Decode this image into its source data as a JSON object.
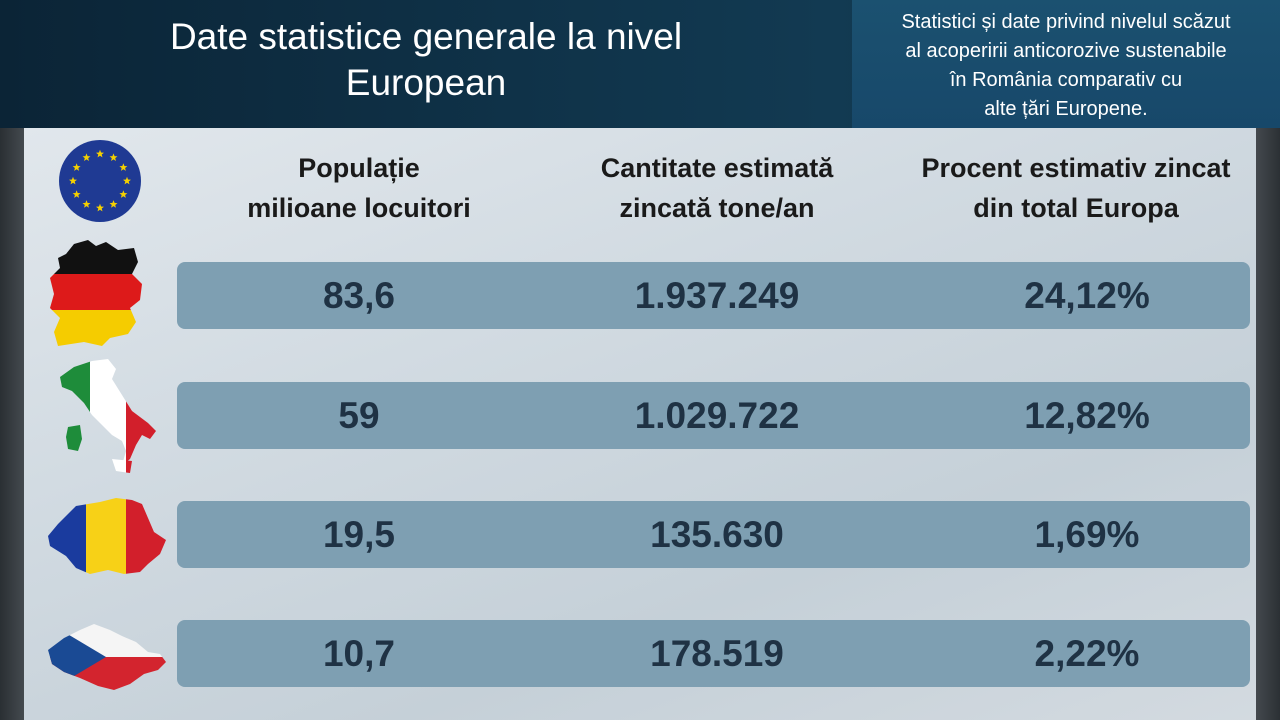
{
  "header": {
    "title_line1": "Date statistice generale la nivel",
    "title_line2": "European",
    "subtitle_line1": "Statistici și date privind nivelul scăzut",
    "subtitle_line2": "al acoperirii anticorozive sustenabile",
    "subtitle_line3": "în România comparativ cu",
    "subtitle_line4": "alte țări Europene."
  },
  "columns": {
    "population": {
      "line1": "Populație",
      "line2": "milioane locuitori"
    },
    "quantity": {
      "line1": "Cantitate estimată",
      "line2": "zincată tone/an"
    },
    "percent": {
      "line1": "Procent estimativ zincat",
      "line2": "din total Europa"
    }
  },
  "rows": [
    {
      "flag": "germany-map-flag",
      "population": "83,6",
      "quantity": "1.937.249",
      "percent": "24,12%"
    },
    {
      "flag": "italy-map-flag",
      "population": "59",
      "quantity": "1.029.722",
      "percent": "12,82%"
    },
    {
      "flag": "romania-map-flag",
      "population": "19,5",
      "quantity": "135.630",
      "percent": "1,69%"
    },
    {
      "flag": "czechia-map-flag",
      "population": "10,7",
      "quantity": "178.519",
      "percent": "2,22%"
    }
  ],
  "colors": {
    "header_bg": "#0f3248",
    "subtitle_bg": "#1b5170",
    "row_bar": "#7e9fb2",
    "value_text": "#1f3244",
    "eu_blue": "#1f3a93",
    "eu_star": "#f5d000"
  }
}
